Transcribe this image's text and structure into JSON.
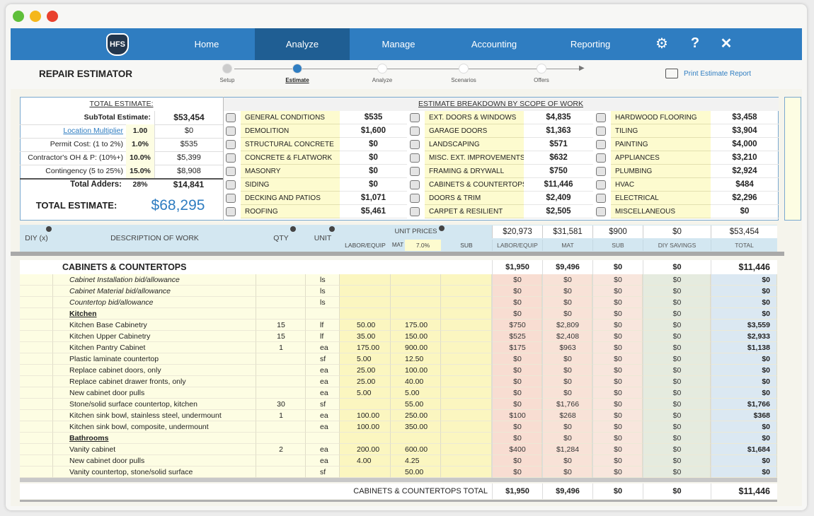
{
  "nav": {
    "logo": "HFS",
    "items": [
      "Home",
      "Analyze",
      "Manage",
      "Accounting",
      "Reporting"
    ],
    "active": 1
  },
  "header": {
    "title": "REPAIR ESTIMATOR",
    "steps": [
      "Setup",
      "Estimate",
      "Analyze",
      "Scenarios",
      "Offers"
    ],
    "current": 1,
    "print": "Print Estimate Report"
  },
  "summary": {
    "heading": "TOTAL ESTIMATE:",
    "subtotal": {
      "label": "SubTotal Estimate:",
      "value": "$53,454"
    },
    "adders": [
      {
        "label": "Location Multiplier",
        "rate": "1.00",
        "value": "$0"
      },
      {
        "label": "Permit Cost: (1 to 2%)",
        "rate": "1.0%",
        "value": "$535"
      },
      {
        "label": "Contractor's  OH & P: (10%+)",
        "rate": "10.0%",
        "value": "$5,399"
      },
      {
        "label": "Contingency (5 to 25%)",
        "rate": "15.0%",
        "value": "$8,908"
      }
    ],
    "total_adders": {
      "label": "Total Adders:",
      "rate": "28%",
      "value": "$14,841"
    },
    "total": {
      "label": "TOTAL ESTIMATE:",
      "value": "$68,295"
    }
  },
  "breakdown": {
    "heading": "ESTIMATE BREAKDOWN BY SCOPE OF WORK",
    "items": [
      {
        "name": "GENERAL CONDITIONS",
        "value": "$535"
      },
      {
        "name": "DEMOLITION",
        "value": "$1,600"
      },
      {
        "name": "STRUCTURAL CONCRETE",
        "value": "$0"
      },
      {
        "name": "CONCRETE & FLATWORK",
        "value": "$0"
      },
      {
        "name": "MASONRY",
        "value": "$0"
      },
      {
        "name": "SIDING",
        "value": "$0"
      },
      {
        "name": "DECKING AND PATIOS",
        "value": "$1,071"
      },
      {
        "name": "ROOFING",
        "value": "$5,461"
      },
      {
        "name": "EXT. DOORS & WINDOWS",
        "value": "$4,835"
      },
      {
        "name": "GARAGE DOORS",
        "value": "$1,363"
      },
      {
        "name": "LANDSCAPING",
        "value": "$571"
      },
      {
        "name": "MISC. EXT. IMPROVEMENTS",
        "value": "$632"
      },
      {
        "name": "FRAMING & DRYWALL",
        "value": "$750"
      },
      {
        "name": "CABINETS & COUNTERTOPS",
        "value": "$11,446"
      },
      {
        "name": "DOORS & TRIM",
        "value": "$2,409"
      },
      {
        "name": "CARPET & RESILIENT",
        "value": "$2,505"
      },
      {
        "name": "HARDWOOD FLOORING",
        "value": "$3,458"
      },
      {
        "name": "TILING",
        "value": "$3,904"
      },
      {
        "name": "PAINTING",
        "value": "$4,000"
      },
      {
        "name": "APPLIANCES",
        "value": "$3,210"
      },
      {
        "name": "PLUMBING",
        "value": "$2,924"
      },
      {
        "name": "HVAC",
        "value": "$484"
      },
      {
        "name": "ELECTRICAL",
        "value": "$2,296"
      },
      {
        "name": "MISCELLANEOUS",
        "value": "$0"
      }
    ]
  },
  "table": {
    "columns": {
      "diy": "DIY (x)",
      "desc": "DESCRIPTION OF WORK",
      "qty": "QTY",
      "unit": "UNIT",
      "unit_prices": "UNIT PRICES",
      "labor": "LABOR/EQUIP",
      "mat": "MAT",
      "tax": "7.0%",
      "sub": "SUB"
    },
    "grand_totals": [
      "$20,973",
      "$31,581",
      "$900",
      "$0",
      "$53,454"
    ],
    "total_labels": [
      "LABOR/EQUIP",
      "MAT",
      "SUB",
      "DIY SAVINGS",
      "TOTAL"
    ],
    "section": {
      "title": "CABINETS & COUNTERTOPS",
      "totals": [
        "$1,950",
        "$9,496",
        "$0",
        "$0",
        "$11,446"
      ]
    },
    "rows": [
      {
        "desc": "Cabinet Installation bid/allowance",
        "style": "italic",
        "unit": "ls",
        "totals": [
          "$0",
          "$0",
          "$0",
          "$0",
          "$0"
        ]
      },
      {
        "desc": "Cabinet Material bid/allowance",
        "style": "italic",
        "unit": "ls",
        "totals": [
          "$0",
          "$0",
          "$0",
          "$0",
          "$0"
        ]
      },
      {
        "desc": "Countertop bid/allowance",
        "style": "italic",
        "unit": "ls",
        "totals": [
          "$0",
          "$0",
          "$0",
          "$0",
          "$0"
        ]
      },
      {
        "desc": "Kitchen",
        "style": "heading",
        "totals": [
          "$0",
          "$0",
          "$0",
          "$0",
          "$0"
        ]
      },
      {
        "desc": "Kitchen Base Cabinetry",
        "qty": 15,
        "unit": "lf",
        "labor": "50.00",
        "mat": "175.00",
        "totals": [
          "$750",
          "$2,809",
          "$0",
          "$0",
          "$3,559"
        ]
      },
      {
        "desc": "Kitchen Upper Cabinetry",
        "qty": 15,
        "unit": "lf",
        "labor": "35.00",
        "mat": "150.00",
        "totals": [
          "$525",
          "$2,408",
          "$0",
          "$0",
          "$2,933"
        ]
      },
      {
        "desc": "Kitchen Pantry Cabinet",
        "qty": 1,
        "unit": "ea",
        "labor": "175.00",
        "mat": "900.00",
        "totals": [
          "$175",
          "$963",
          "$0",
          "$0",
          "$1,138"
        ]
      },
      {
        "desc": "Plastic laminate countertop",
        "unit": "sf",
        "labor": "5.00",
        "mat": "12.50",
        "totals": [
          "$0",
          "$0",
          "$0",
          "$0",
          "$0"
        ]
      },
      {
        "desc": "Replace cabinet doors, only",
        "unit": "ea",
        "labor": "25.00",
        "mat": "100.00",
        "totals": [
          "$0",
          "$0",
          "$0",
          "$0",
          "$0"
        ]
      },
      {
        "desc": "Replace cabinet drawer fronts, only",
        "unit": "ea",
        "labor": "25.00",
        "mat": "40.00",
        "totals": [
          "$0",
          "$0",
          "$0",
          "$0",
          "$0"
        ]
      },
      {
        "desc": "New cabinet door pulls",
        "unit": "ea",
        "labor": "5.00",
        "mat": "5.00",
        "totals": [
          "$0",
          "$0",
          "$0",
          "$0",
          "$0"
        ]
      },
      {
        "desc": "Stone/solid surface countertop, kitchen",
        "qty": 30,
        "unit": "sf",
        "mat": "55.00",
        "totals": [
          "$0",
          "$1,766",
          "$0",
          "$0",
          "$1,766"
        ]
      },
      {
        "desc": "Kitchen sink bowl, stainless steel, undermount",
        "qty": 1,
        "unit": "ea",
        "labor": "100.00",
        "mat": "250.00",
        "totals": [
          "$100",
          "$268",
          "$0",
          "$0",
          "$368"
        ]
      },
      {
        "desc": "Kitchen sink bowl, composite, undermount",
        "unit": "ea",
        "labor": "100.00",
        "mat": "350.00",
        "totals": [
          "$0",
          "$0",
          "$0",
          "$0",
          "$0"
        ]
      },
      {
        "desc": "Bathrooms",
        "style": "heading",
        "totals": [
          "$0",
          "$0",
          "$0",
          "$0",
          "$0"
        ]
      },
      {
        "desc": "Vanity cabinet",
        "qty": 2,
        "unit": "ea",
        "labor": "200.00",
        "mat": "600.00",
        "totals": [
          "$400",
          "$1,284",
          "$0",
          "$0",
          "$1,684"
        ]
      },
      {
        "desc": "New cabinet door pulls",
        "unit": "ea",
        "labor": "4.00",
        "mat": "4.25",
        "totals": [
          "$0",
          "$0",
          "$0",
          "$0",
          "$0"
        ]
      },
      {
        "desc": "Vanity countertop, stone/solid surface",
        "unit": "sf",
        "mat": "50.00",
        "totals": [
          "$0",
          "$0",
          "$0",
          "$0",
          "$0"
        ]
      }
    ],
    "footer": {
      "label": "CABINETS & COUNTERTOPS TOTAL",
      "totals": [
        "$1,950",
        "$9,496",
        "$0",
        "$0",
        "$11,446"
      ]
    }
  }
}
